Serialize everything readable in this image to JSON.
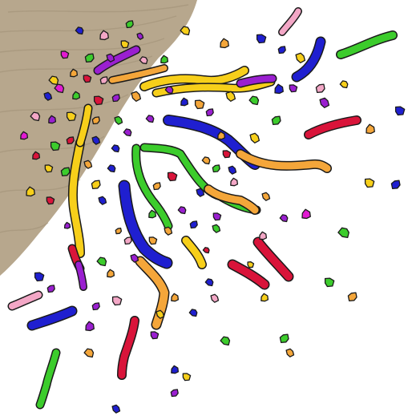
{
  "image": {
    "kind": "clip-art",
    "subject": "confetti",
    "background_color": "#ffffff"
  },
  "background_surface": {
    "color": "#b7a78d",
    "grain_color": "#9c8b70"
  },
  "palette": {
    "outline": "#1a1a1a",
    "blue": "#1f1fd0",
    "yellow": "#f7cf1a",
    "orange": "#f4a63a",
    "green": "#3ccc2c",
    "purple": "#9a1fd0",
    "magenta": "#e21ad2",
    "red": "#d9143a",
    "pink": "#f3a7c6",
    "light_blue": "#78a8f0"
  }
}
